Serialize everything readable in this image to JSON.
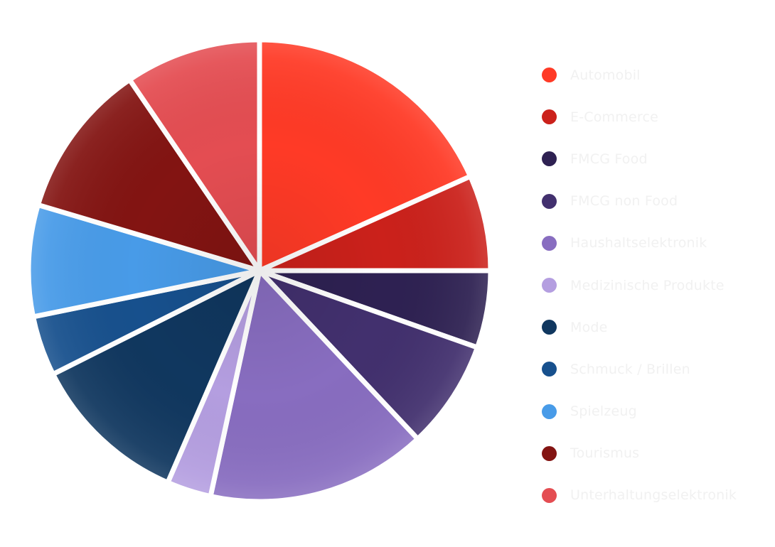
{
  "chart_data": {
    "type": "pie",
    "categories": [
      "Automobil",
      "E-Commerce",
      "FMCG Food",
      "FMCG non Food",
      "Haushaltselektronik",
      "Medizinische Produkte",
      "Mode",
      "Schmuck / Brillen",
      "Spielzeug",
      "Tourismus",
      "Unterhaltungselektronik"
    ],
    "values": [
      18.3,
      6.7,
      5.4,
      7.6,
      15.4,
      3.1,
      11.1,
      4.2,
      7.8,
      10.9,
      9.5
    ],
    "colors": [
      "#ff3a26",
      "#cb211b",
      "#2e2152",
      "#42306e",
      "#886dc0",
      "#b49ee0",
      "#10375f",
      "#17508d",
      "#489be8",
      "#831412",
      "#e44d52"
    ],
    "start_angle_deg": 0,
    "direction": "clockwise",
    "legend_position": "right"
  }
}
